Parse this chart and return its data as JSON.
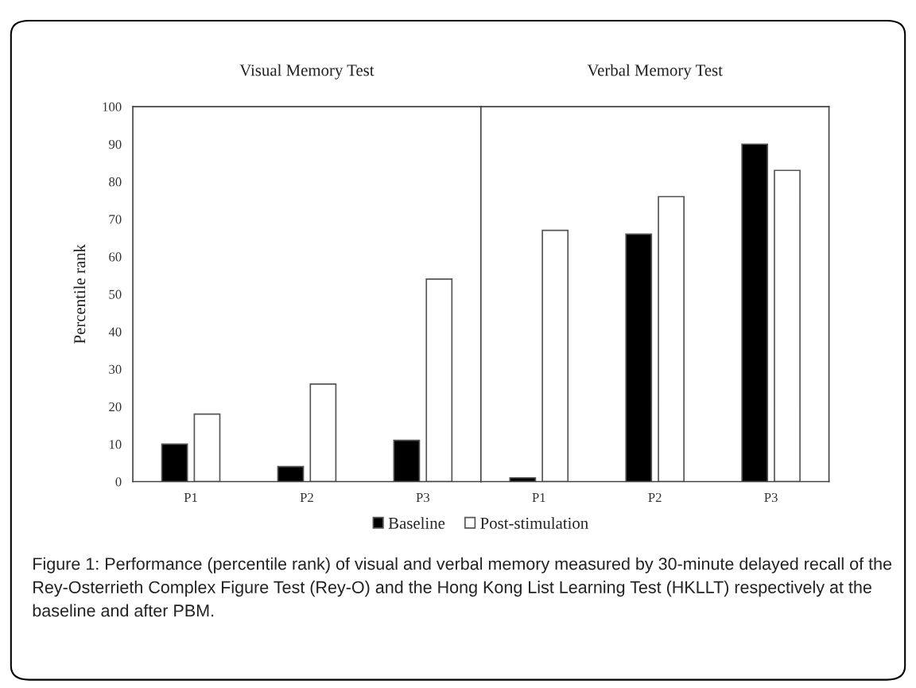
{
  "chart_data": [
    {
      "type": "bar",
      "title": "Visual Memory Test",
      "ylabel": "Percentile rank",
      "categories": [
        "P1",
        "P2",
        "P3"
      ],
      "series": [
        {
          "name": "Baseline",
          "color": "#000000",
          "values": [
            10,
            4,
            11
          ]
        },
        {
          "name": "Post-stimulation",
          "color": "#ffffff",
          "values": [
            18,
            26,
            54
          ]
        }
      ],
      "ylim": [
        0,
        100
      ],
      "yticks": [
        0,
        10,
        20,
        30,
        40,
        50,
        60,
        70,
        80,
        90,
        100
      ],
      "grid": false,
      "legend": "bottom",
      "annotations": [
        "Figure 1: Performance (percentile rank) of visual and verbal memory measured by 30-minute delayed recall of the Rey-Osterrieth Complex Figure Test (Rey-O) and the Hong Kong List Learning Test (HKLLT) respectively at the baseline and after PBM."
      ]
    },
    {
      "type": "bar",
      "title": "Verbal Memory Test",
      "categories": [
        "P1",
        "P2",
        "P3"
      ],
      "series": [
        {
          "color": "#000000",
          "values": [
            1,
            66,
            90
          ]
        },
        {
          "color": "#ffffff",
          "values": [
            67,
            76,
            83
          ]
        }
      ],
      "ylim": [
        0,
        100
      ],
      "grid": false,
      "tick_labels": "x"
    }
  ]
}
